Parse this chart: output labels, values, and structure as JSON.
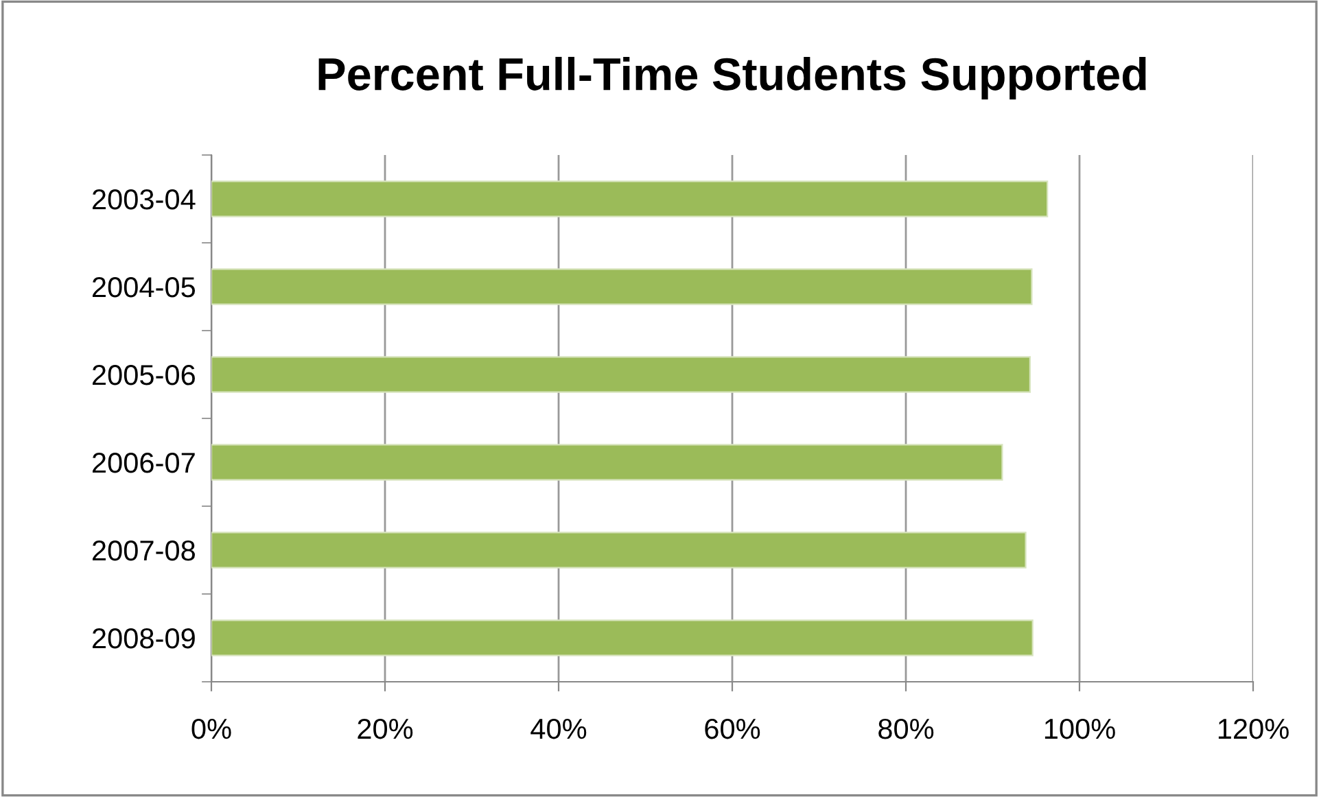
{
  "chart_data": {
    "type": "bar",
    "orientation": "horizontal",
    "title": "Percent Full-Time Students Supported",
    "categories": [
      "2003-04",
      "2004-05",
      "2005-06",
      "2006-07",
      "2007-08",
      "2008-09"
    ],
    "values": [
      96.3,
      94.5,
      94.3,
      91.1,
      93.8,
      94.6
    ],
    "color": "#9bbb59",
    "xlim": [
      0,
      120
    ],
    "xticks": [
      {
        "value": 0,
        "label": "0%"
      },
      {
        "value": 20,
        "label": "20%"
      },
      {
        "value": 40,
        "label": "40%"
      },
      {
        "value": 60,
        "label": "60%"
      },
      {
        "value": 80,
        "label": "80%"
      },
      {
        "value": 100,
        "label": "100%"
      },
      {
        "value": 120,
        "label": "120%"
      }
    ],
    "grid": "x",
    "legend": false
  }
}
